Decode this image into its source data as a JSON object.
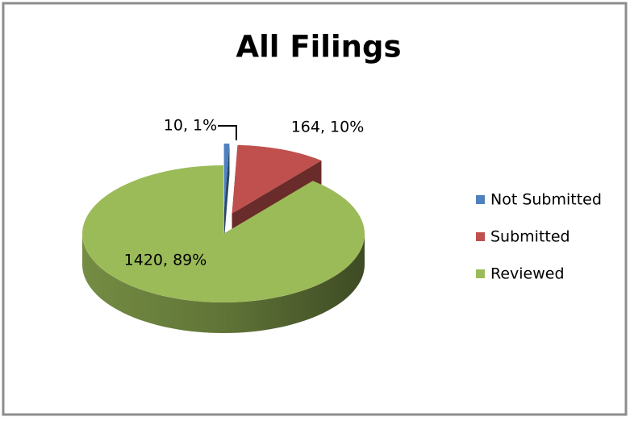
{
  "chart_data": {
    "type": "pie3d",
    "title": "All Filings",
    "categories": [
      "Not Submitted",
      "Submitted",
      "Reviewed"
    ],
    "values": [
      10,
      164,
      1420
    ],
    "value_labels": [
      "10, 1%",
      "164, 10%",
      "1420, 89%"
    ],
    "colors": [
      "#4f81bd",
      "#c0504d",
      "#9bbb59"
    ],
    "legend": "right"
  }
}
